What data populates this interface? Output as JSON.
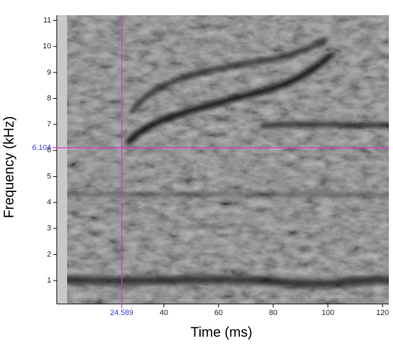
{
  "chart_data": {
    "type": "spectrogram",
    "xlabel": "Time (ms)",
    "ylabel": "Frequency (kHz)",
    "xlim": [
      0.8,
      122.3
    ],
    "ylim": [
      0.1,
      11.2
    ],
    "xticks": [
      40,
      60,
      80,
      100,
      120
    ],
    "yticks": [
      1,
      2,
      3,
      4,
      5,
      6,
      7,
      8,
      9,
      10,
      11
    ],
    "cursor_x": 24.589,
    "cursor_y": 6.104,
    "cursor_color": "#d633d6",
    "cursor_label_color": "#3a3ad6"
  }
}
